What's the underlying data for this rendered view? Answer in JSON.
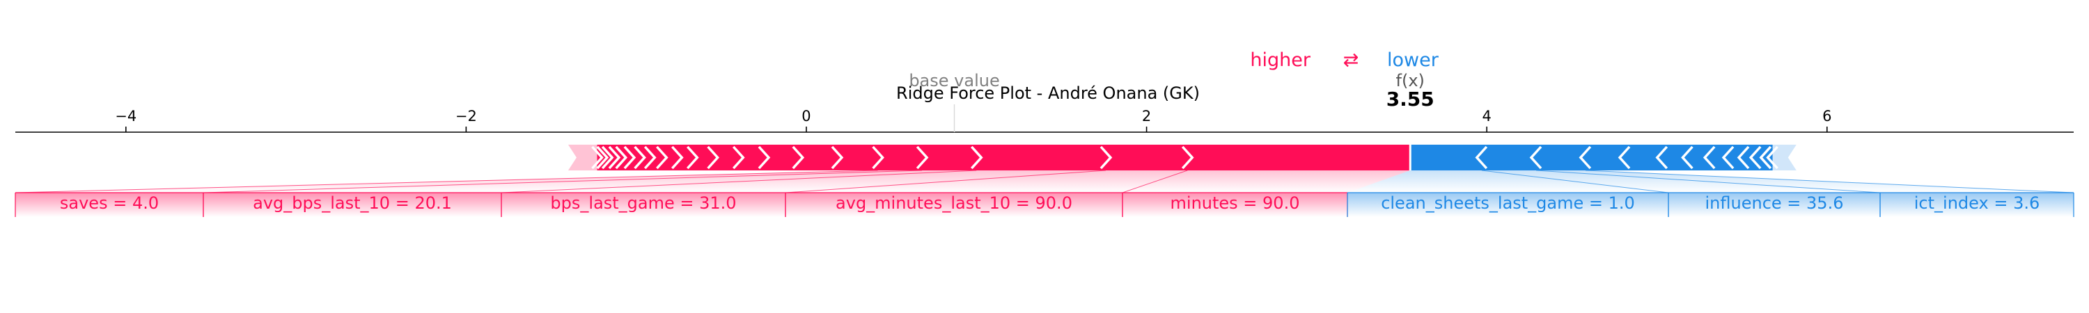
{
  "chart_data": {
    "type": "force",
    "title": "Ridge Force Plot - André Onana (GK)",
    "legend": {
      "higher": "higher",
      "arrow": "⇄",
      "lower": "lower"
    },
    "base_value": {
      "label": "base value",
      "value": 0.87
    },
    "output": {
      "label": "f(x)",
      "value": 3.55,
      "display": "3.55"
    },
    "xlim": [
      -4.65,
      7.45
    ],
    "ticks": [
      "−4",
      "−2",
      "0",
      "2",
      "4",
      "6"
    ],
    "tick_values": [
      -4,
      -2,
      0,
      2,
      4,
      6
    ],
    "colors": {
      "positive": "#ff0d57",
      "negative": "#1e88e5",
      "positive_light": "#ffc3d5",
      "negative_light": "#d1e6fa",
      "base_text": "#808080"
    },
    "positive_features": [
      {
        "label": "minutes = 90.0",
        "start": 2.24,
        "end": 3.55
      },
      {
        "label": "avg_minutes_last_10 = 90.0",
        "start": 1.76,
        "end": 2.24
      },
      {
        "label": "bps_last_game = 31.0",
        "start": 1.0,
        "end": 1.76
      },
      {
        "label": "avg_bps_last_10 = 20.1",
        "start": 0.68,
        "end": 1.0
      },
      {
        "label": "saves = 4.0",
        "start": 0.42,
        "end": 0.68
      }
    ],
    "positive_minor": [
      0.18,
      -0.05,
      -0.25,
      -0.4,
      -0.55,
      -0.67,
      -0.76,
      -0.85,
      -0.92,
      -0.98,
      -1.04,
      -1.09,
      -1.13,
      -1.17,
      -1.2,
      -1.23
    ],
    "positive_end": -1.4,
    "negative_features": [
      {
        "label": "clean_sheets_last_game = 1.0",
        "start": 3.55,
        "end": 3.97
      },
      {
        "label": "influence = 35.6",
        "start": 3.97,
        "end": 4.29
      },
      {
        "label": "ict_index = 3.6",
        "start": 4.29,
        "end": 4.58
      }
    ],
    "negative_minor": [
      4.81,
      5.03,
      5.18,
      5.31,
      5.42,
      5.51,
      5.58,
      5.64,
      5.68
    ],
    "negative_end": 5.82
  }
}
